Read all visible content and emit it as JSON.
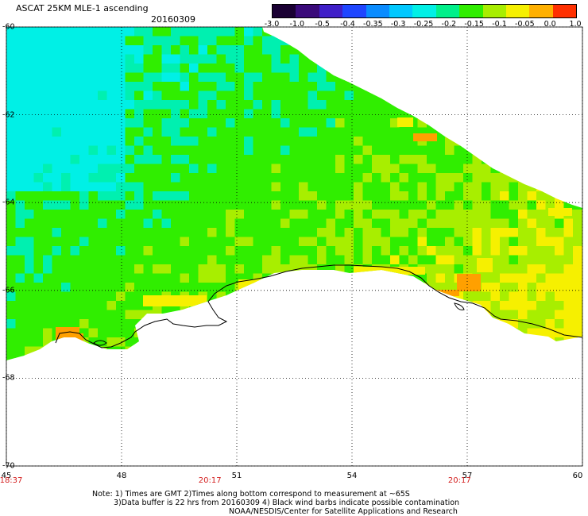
{
  "title": "ASCAT 25KM MLE-1 ascending",
  "date": "20160309",
  "colorbar": {
    "labels": [
      "-3.0",
      "-1.0",
      "-0.5",
      "-0.4",
      "-0.35",
      "-0.3",
      "-0.25",
      "-0.2",
      "-0.15",
      "-0.1",
      "-0.05",
      "0.0",
      "1.0"
    ],
    "colors": [
      "#1a0033",
      "#3a0a7a",
      "#3f1fc8",
      "#1f46ff",
      "#0a8cff",
      "#00c8ff",
      "#00f0e6",
      "#00f08a",
      "#30ee00",
      "#a8ee00",
      "#f6f000",
      "#ffb000",
      "#ff3000"
    ]
  },
  "map": {
    "lon_range": [
      45,
      60
    ],
    "lat_range": [
      -60,
      -70
    ],
    "lat_ticks": [
      "-60",
      "-62",
      "-64",
      "-66",
      "-68",
      "-70"
    ],
    "lon_ticks": [
      "45",
      "48",
      "51",
      "54",
      "57",
      "60"
    ],
    "time_labels": [
      {
        "lon": 45,
        "text": "18:37"
      },
      {
        "lon": 50.3,
        "text": "20:17"
      },
      {
        "lon": 56.8,
        "text": "20:17"
      }
    ],
    "palette": {
      "cyan": "#00f0e6",
      "aqua": "#00f0b0",
      "green": "#30ee00",
      "lime": "#a8ee00",
      "yellow": "#f6f000",
      "orange": "#ffa000",
      "coast": "#000000"
    }
  },
  "notes": {
    "line1": "Note: 1) Times are GMT 2)Times along bottom correspond to measurement at ~65S",
    "line2": "3)Data buffer is 22 hrs from 20160309 4) Black wind barbs indicate possible contamination",
    "line3": "NOAA/NESDIS/Center for Satellite Applications and Research"
  }
}
